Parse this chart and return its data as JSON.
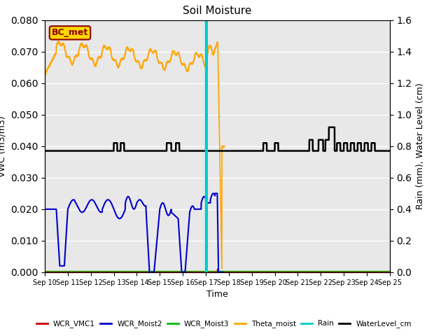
{
  "title": "Soil Moisture",
  "xlabel": "Time",
  "ylabel_left": "VWC (m3/m3)",
  "ylabel_right": "Rain (mm), Water Level (cm)",
  "ylim_left": [
    0.0,
    0.08
  ],
  "ylim_right": [
    0.0,
    1.6
  ],
  "yticks_left": [
    0.0,
    0.01,
    0.02,
    0.03,
    0.04,
    0.05,
    0.06,
    0.07,
    0.08
  ],
  "yticks_right": [
    0.0,
    0.2,
    0.4,
    0.6,
    0.8,
    1.0,
    1.2,
    1.4,
    1.6
  ],
  "xtick_labels": [
    "Sep 10",
    "Sep 11",
    "Sep 12",
    "Sep 13",
    "Sep 14",
    "Sep 15",
    "Sep 16",
    "Sep 17",
    "Sep 18",
    "Sep 19",
    "Sep 20",
    "Sep 21",
    "Sep 22",
    "Sep 23",
    "Sep 24",
    "Sep 25"
  ],
  "bg_color": "#e8e8e8",
  "annotation_label": "BC_met",
  "annotation_color": "#8b0000",
  "annotation_bg": "#ffd700",
  "colors": {
    "WCR_VMC1": "#cc0000",
    "WCR_Moist2": "#0000cc",
    "WCR_Moist3": "#00bb00",
    "Theta_moist": "#ffa500",
    "Rain": "#00cccc",
    "WaterLevel_cm": "#000000"
  }
}
